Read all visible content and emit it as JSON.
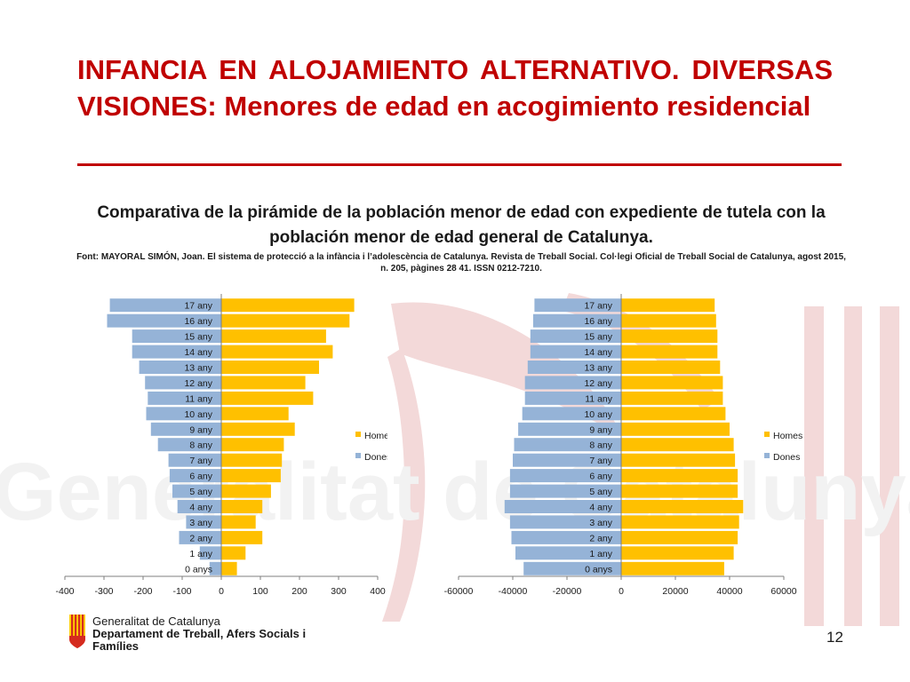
{
  "slide": {
    "title": "INFANCIA EN ALOJAMIENTO ALTERNATIVO. DIVERSAS VISIONES: Menores de edad en acogimiento residencial",
    "subtitle": "Comparativa de la pirámide de la población menor de edad con expediente de tutela con la población menor de edad general de Catalunya.",
    "source": "Font: MAYORAL SIMÓN, Joan. El sistema de protecció a la infància i l’adolescència de Catalunya. Revista de Treball Social. Col·legi Oficial de Treball Social de Catalunya, agost 2015, n. 205, pàgines 28 41. ISSN 0212-7210.",
    "page_number": "12"
  },
  "footer": {
    "org": "Generalitat de Catalunya",
    "dept": "Departament de Treball, Afers Socials i Famílies",
    "watermark_text": "Generalitat de Catalunya"
  },
  "colors": {
    "title": "#c00000",
    "homes": "#ffc000",
    "dones": "#95b3d7",
    "watermark": "#f3d9d9"
  },
  "chart_data": [
    {
      "type": "bar",
      "orientation": "horizontal-pyramid",
      "categories": [
        "0 anys",
        "1 any",
        "2 any",
        "3 any",
        "4 any",
        "5 any",
        "6 any",
        "7 any",
        "8 any",
        "9 any",
        "10 any",
        "11 any",
        "12 any",
        "13 any",
        "14 any",
        "15 any",
        "16 any",
        "17 any"
      ],
      "series": [
        {
          "name": "Homes",
          "values": [
            40,
            62,
            105,
            88,
            105,
            127,
            152,
            155,
            160,
            188,
            172,
            235,
            215,
            250,
            285,
            268,
            328,
            340
          ]
        },
        {
          "name": "Dones",
          "values": [
            -30,
            -55,
            -108,
            -90,
            -112,
            -125,
            -132,
            -135,
            -162,
            -180,
            -192,
            -188,
            -195,
            -210,
            -228,
            -228,
            -292,
            -285
          ]
        }
      ],
      "xlim": [
        -400,
        400
      ],
      "xticks": [
        -400,
        -300,
        -200,
        -100,
        0,
        100,
        200,
        300,
        400
      ],
      "legend_position": "right"
    },
    {
      "type": "bar",
      "orientation": "horizontal-pyramid",
      "categories": [
        "0 anys",
        "1 any",
        "2 any",
        "3 any",
        "4 any",
        "5 any",
        "6 any",
        "7 any",
        "8 any",
        "9 any",
        "10 any",
        "11 any",
        "12 any",
        "13 any",
        "14 any",
        "15 any",
        "16 any",
        "17 any"
      ],
      "series": [
        {
          "name": "Homes",
          "values": [
            38000,
            41500,
            43000,
            43500,
            45000,
            43000,
            43000,
            42000,
            41500,
            40000,
            38500,
            37500,
            37500,
            36500,
            35500,
            35500,
            35000,
            34500
          ]
        },
        {
          "name": "Dones",
          "values": [
            -36000,
            -39000,
            -40500,
            -41000,
            -43000,
            -41000,
            -41000,
            -40000,
            -39500,
            -38000,
            -36500,
            -35500,
            -35500,
            -34500,
            -33500,
            -33500,
            -32500,
            -32000
          ]
        }
      ],
      "xlim": [
        -60000,
        60000
      ],
      "xticks": [
        -60000,
        -40000,
        -20000,
        0,
        20000,
        40000,
        60000
      ],
      "legend_position": "right"
    }
  ]
}
